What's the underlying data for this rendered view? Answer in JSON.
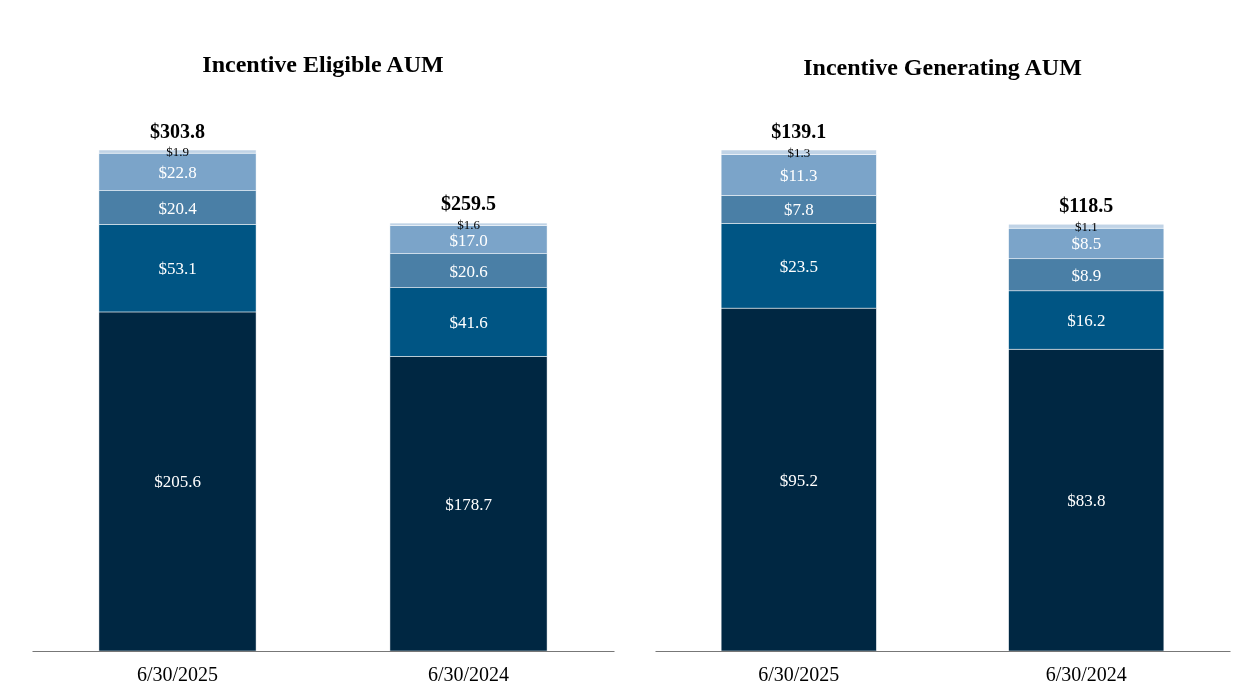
{
  "chart_data": [
    {
      "type": "bar",
      "title": "Incentive Eligible AUM",
      "stacked": true,
      "categories": [
        "6/30/2025",
        "6/30/2024"
      ],
      "series": [
        {
          "color": "#002742",
          "values": [
            205.6,
            178.7
          ],
          "value_labels": [
            "$205.6",
            "$178.7"
          ]
        },
        {
          "color": "#005584",
          "values": [
            53.1,
            41.6
          ],
          "value_labels": [
            "$53.1",
            "$41.6"
          ]
        },
        {
          "color": "#4a7fa6",
          "values": [
            20.4,
            20.6
          ],
          "value_labels": [
            "$20.4",
            "$20.6"
          ]
        },
        {
          "color": "#7ba4c9",
          "values": [
            22.8,
            17.0
          ],
          "value_labels": [
            "$22.8",
            "$17.0"
          ]
        },
        {
          "color": "#c0d3e6",
          "values": [
            1.9,
            1.6
          ],
          "value_labels": [
            "$1.9",
            "$1.6"
          ]
        }
      ],
      "totals": [
        "$303.8",
        "$259.5"
      ]
    },
    {
      "type": "bar",
      "title": "Incentive Generating AUM",
      "stacked": true,
      "categories": [
        "6/30/2025",
        "6/30/2024"
      ],
      "series": [
        {
          "color": "#002742",
          "values": [
            95.2,
            83.8
          ],
          "value_labels": [
            "$95.2",
            "$83.8"
          ]
        },
        {
          "color": "#005584",
          "values": [
            23.5,
            16.2
          ],
          "value_labels": [
            "$23.5",
            "$16.2"
          ]
        },
        {
          "color": "#4a7fa6",
          "values": [
            7.8,
            8.9
          ],
          "value_labels": [
            "$7.8",
            "$8.9"
          ]
        },
        {
          "color": "#7ba4c9",
          "values": [
            11.3,
            8.5
          ],
          "value_labels": [
            "$11.3",
            "$8.5"
          ]
        },
        {
          "color": "#c0d3e6",
          "values": [
            1.3,
            1.1
          ],
          "value_labels": [
            "$1.3",
            "$1.1"
          ]
        }
      ],
      "totals": [
        "$139.1",
        "$118.5"
      ]
    }
  ]
}
